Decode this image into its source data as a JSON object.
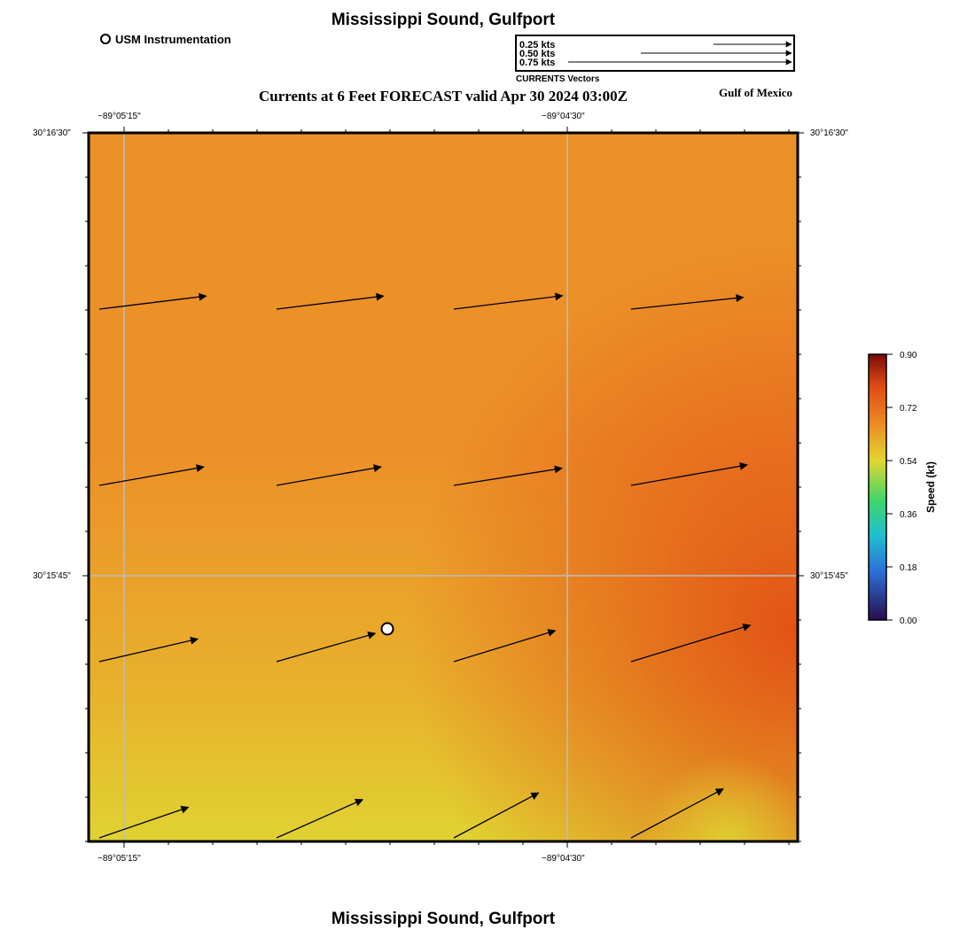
{
  "header": {
    "title": "Mississippi Sound, Gulfport",
    "subtitle": "Currents at 6 Feet FORECAST valid Apr 30 2024 03:00Z",
    "region_label": "Gulf of Mexico"
  },
  "footer": {
    "title": "Mississippi Sound, Gulfport"
  },
  "legend": {
    "station_label": "USM Instrumentation"
  },
  "vector_scale": {
    "caption": "CURRENTS Vectors",
    "entries": [
      "0.25 kts",
      "0.50 kts",
      "0.75 kts"
    ]
  },
  "axes": {
    "top_ticks": [
      "−89°05'15\"",
      "−89°04'30\""
    ],
    "bottom_ticks": [
      "−89°05'15\"",
      "−89°04'30\""
    ],
    "left_ticks": [
      "30°16'30\"",
      "30°15'45\""
    ],
    "right_ticks": [
      "30°16'30\"",
      "30°15'45\""
    ]
  },
  "colorbar": {
    "label": "Speed (kt)",
    "ticks": [
      "0.90",
      "0.72",
      "0.54",
      "0.36",
      "0.18",
      "0.00"
    ],
    "min": 0.0,
    "max": 0.9,
    "colors": {
      "low": "#2a0c4e",
      "blue": "#2b6fd6",
      "cyan": "#1fbfd0",
      "green": "#3fd66a",
      "yellow": "#e2d630",
      "orange": "#ec8a24",
      "red": "#e04a14",
      "high": "#7a0a0a"
    }
  },
  "field": {
    "colors": {
      "orange": "#ec9028",
      "red": "#e24e14",
      "yellow": "#e0d232",
      "yellow_orange": "#e8b02c"
    }
  },
  "vectors": {
    "rows": [
      [
        {
          "speed_kt": 0.64,
          "dir_deg": 83
        },
        {
          "speed_kt": 0.64,
          "dir_deg": 83
        },
        {
          "speed_kt": 0.65,
          "dir_deg": 83
        },
        {
          "speed_kt": 0.67,
          "dir_deg": 84
        }
      ],
      [
        {
          "speed_kt": 0.63,
          "dir_deg": 80
        },
        {
          "speed_kt": 0.63,
          "dir_deg": 80
        },
        {
          "speed_kt": 0.65,
          "dir_deg": 81
        },
        {
          "speed_kt": 0.7,
          "dir_deg": 80
        }
      ],
      [
        {
          "speed_kt": 0.6,
          "dir_deg": 77
        },
        {
          "speed_kt": 0.61,
          "dir_deg": 74
        },
        {
          "speed_kt": 0.63,
          "dir_deg": 73
        },
        {
          "speed_kt": 0.74,
          "dir_deg": 73
        }
      ],
      [
        {
          "speed_kt": 0.56,
          "dir_deg": 71
        },
        {
          "speed_kt": 0.56,
          "dir_deg": 66
        },
        {
          "speed_kt": 0.57,
          "dir_deg": 62
        },
        {
          "speed_kt": 0.62,
          "dir_deg": 62
        }
      ]
    ]
  }
}
